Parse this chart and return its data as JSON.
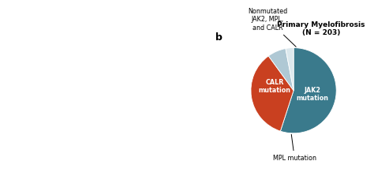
{
  "title_line1": "Primary Myelofibrosis",
  "title_line2": "(N = 203)",
  "slices": [
    {
      "label": "JAK2\nmutation",
      "value": 55,
      "color": "#3a7a8c"
    },
    {
      "label": "CALR\nmutation",
      "value": 35,
      "color": "#c94020"
    },
    {
      "label": "MPL mutation",
      "value": 7,
      "color": "#afc8d4"
    },
    {
      "label": "Nonmutated\nJAK2, MPL,\nand CALR",
      "value": 3,
      "color": "#dce8ed"
    }
  ],
  "panel_label": "b",
  "title_fontsize": 6.5,
  "label_fontsize": 5.8,
  "panel_fontsize": 9,
  "bg_color": "#ffffff",
  "left_bg_color": "#c8d4e8",
  "startangle": 90
}
